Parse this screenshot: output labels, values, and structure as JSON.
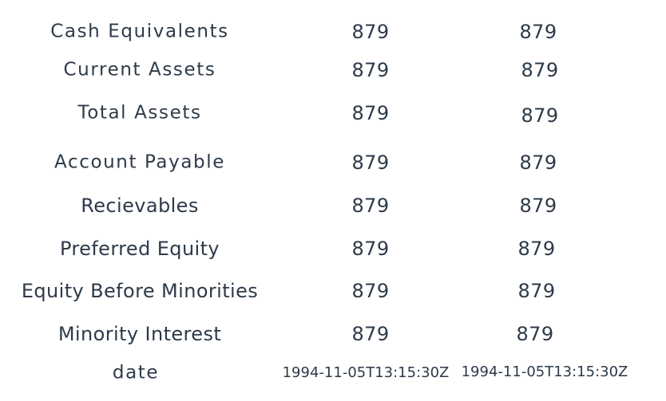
{
  "rows": [
    {
      "label": "Cash Equivalents",
      "col1": "879",
      "col2": "879"
    },
    {
      "label": "Current Assets",
      "col1": "879",
      "col2": "879"
    },
    {
      "label": "Total Assets",
      "col1": "879",
      "col2": "879"
    },
    {
      "label": "Account Payable",
      "col1": "879",
      "col2": "879"
    },
    {
      "label": "Recievables",
      "col1": "879",
      "col2": "879"
    },
    {
      "label": "Preferred Equity",
      "col1": "879",
      "col2": "879"
    },
    {
      "label": "Equity Before Minorities",
      "col1": "879",
      "col2": "879"
    },
    {
      "label": "Minority Interest",
      "col1": "879",
      "col2": "879"
    },
    {
      "label": "date",
      "col1": "1994-11-05T13:15:30Z",
      "col2": "1994-11-05T13:15:30Z"
    }
  ],
  "colors": {
    "text": "#2d3a4a",
    "background": "#ffffff"
  }
}
